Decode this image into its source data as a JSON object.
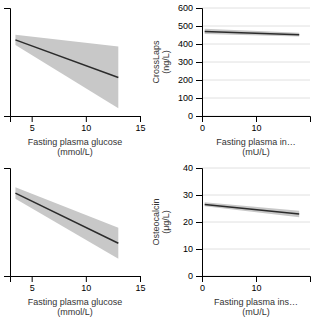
{
  "chart_data": [
    {
      "type": "line",
      "xlabel": "Fasting plasma glucose\n(mmol/L)",
      "xlim": [
        3,
        15
      ],
      "ylim": [
        320,
        530
      ],
      "xticks": [
        5,
        10,
        15
      ],
      "yticks": [],
      "tick_labels": "x",
      "series": [
        {
          "type": "area",
          "color": "#c8c8c8",
          "x": [
            3.5,
            3.5,
            13.0,
            13.0
          ],
          "upper": [
            478,
            478,
            455,
            455
          ],
          "lower": [
            458,
            458,
            335,
            335
          ]
        },
        {
          "type": "line",
          "color": "#2b2b2b",
          "x": [
            3.5,
            13.0
          ],
          "values": [
            468,
            395
          ]
        }
      ]
    },
    {
      "type": "line",
      "xlabel": "Fasting plasma in…\n(mU/L)",
      "ylabel": "CrossLaps\n(ng/L)",
      "xlim": [
        0,
        20
      ],
      "ylim": [
        0,
        600
      ],
      "xticks": [
        0,
        10
      ],
      "yticks": [
        0,
        100,
        200,
        300,
        400,
        500,
        600
      ],
      "grid": true,
      "series": [
        {
          "type": "area",
          "color": "#c8c8c8",
          "x": [
            0.5,
            18.0
          ],
          "upper": [
            485,
            462
          ],
          "lower": [
            455,
            442
          ]
        },
        {
          "type": "line",
          "color": "#2b2b2b",
          "x": [
            0.5,
            18.0
          ],
          "values": [
            470,
            452
          ]
        }
      ]
    },
    {
      "type": "line",
      "xlabel": "Fasting plasma glucose\n(mmol/L)",
      "xlim": [
        3,
        15
      ],
      "ylim": [
        10,
        38
      ],
      "xticks": [
        5,
        10,
        15
      ],
      "yticks": [],
      "tick_labels": "x",
      "series": [
        {
          "type": "area",
          "color": "#c8c8c8",
          "x": [
            3.5,
            3.5,
            13.0,
            13.0
          ],
          "upper": [
            33.0,
            33.0,
            22.5,
            22.5
          ],
          "lower": [
            30.0,
            30.0,
            14.5,
            14.5
          ]
        },
        {
          "type": "line",
          "color": "#2b2b2b",
          "x": [
            3.5,
            13.0
          ],
          "values": [
            31.5,
            18.5
          ]
        }
      ]
    },
    {
      "type": "line",
      "xlabel": "Fasting plasma ins…\n(mU/L)",
      "ylabel": "Osteocalcin\n(μg/L)",
      "xlim": [
        0,
        20
      ],
      "ylim": [
        0,
        40
      ],
      "xticks": [
        0,
        10
      ],
      "yticks": [
        0,
        10,
        20,
        30,
        40
      ],
      "grid": true,
      "series": [
        {
          "type": "area",
          "color": "#c8c8c8",
          "x": [
            0.5,
            18.0
          ],
          "upper": [
            27.3,
            24.2
          ],
          "lower": [
            25.8,
            21.8
          ]
        },
        {
          "type": "line",
          "color": "#2b2b2b",
          "x": [
            0.5,
            18.0
          ],
          "values": [
            26.5,
            23.0
          ]
        }
      ]
    }
  ]
}
